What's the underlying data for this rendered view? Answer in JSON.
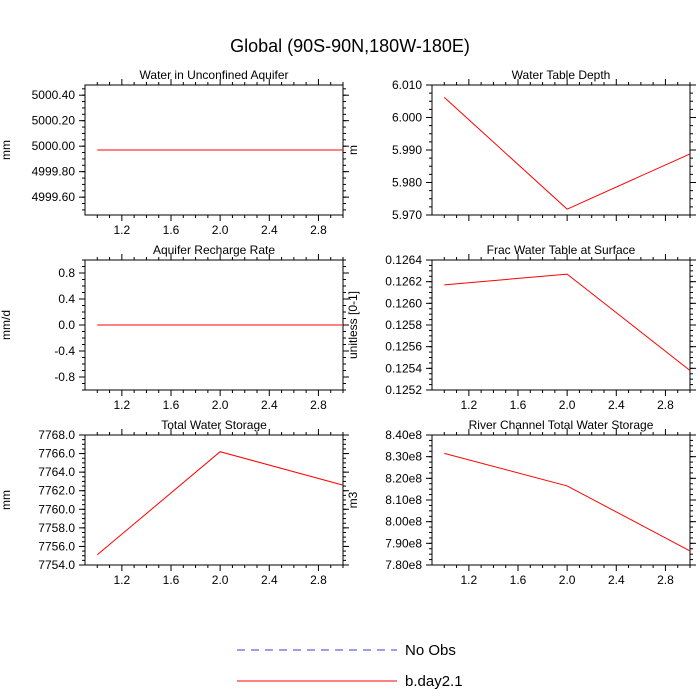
{
  "figure": {
    "title": "Global (90S-90N,180W-180E)"
  },
  "colors": {
    "model": "#ff0000",
    "obs": "#3b3bd6",
    "axis": "#000000"
  },
  "legend": {
    "items": [
      {
        "label": "No Obs",
        "style": "dashed",
        "color": "#3b3bd6"
      },
      {
        "label": "b.day2.1",
        "style": "solid",
        "color": "#ff0000"
      }
    ]
  },
  "chart_data": [
    {
      "type": "line",
      "title": "Water in Unconfined Aquifer",
      "ylabel": "mm",
      "x": [
        1.0,
        2.0,
        3.0
      ],
      "xlim": [
        0.9,
        3.0
      ],
      "ylim": [
        4999.46,
        5000.48
      ],
      "xticks": [
        "1.2",
        "1.6",
        "2.0",
        "2.4",
        "2.8"
      ],
      "yticks": [
        "4999.60",
        "4999.80",
        "5000.00",
        "5000.20",
        "5000.40"
      ],
      "series": [
        {
          "values": [
            4999.97,
            4999.97,
            4999.97
          ]
        }
      ]
    },
    {
      "type": "line",
      "title": "Water Table Depth",
      "ylabel": "m",
      "x": [
        1.0,
        2.0,
        3.0
      ],
      "xlim": [
        0.9,
        3.0
      ],
      "ylim": [
        5.97,
        6.01
      ],
      "xticks": [],
      "yticks": [
        "5.970",
        "5.980",
        "5.990",
        "6.000",
        "6.010"
      ],
      "series": [
        {
          "values": [
            6.0062,
            5.9718,
            5.9888
          ]
        }
      ]
    },
    {
      "type": "line",
      "title": "Aquifer Recharge Rate",
      "ylabel": "mm/d",
      "x": [
        1.0,
        2.0,
        3.0
      ],
      "xlim": [
        0.9,
        3.0
      ],
      "ylim": [
        -1.0,
        1.0
      ],
      "xticks": [
        "1.2",
        "1.6",
        "2.0",
        "2.4",
        "2.8"
      ],
      "yticks": [
        "-0.8",
        "-0.4",
        "0.0",
        "0.4",
        "0.8"
      ],
      "series": [
        {
          "values": [
            0.0,
            0.0,
            0.0
          ]
        }
      ]
    },
    {
      "type": "line",
      "title": "Frac Water Table at Surface",
      "ylabel": "unitless [0-1]",
      "x": [
        1.0,
        2.0,
        3.0
      ],
      "xlim": [
        0.9,
        3.0
      ],
      "ylim": [
        0.1252,
        0.1264
      ],
      "xticks": [
        "1.2",
        "1.6",
        "2.0",
        "2.4",
        "2.8"
      ],
      "yticks": [
        "0.1252",
        "0.1254",
        "0.1256",
        "0.1258",
        "0.1260",
        "0.1262",
        "0.1264"
      ],
      "series": [
        {
          "values": [
            0.12617,
            0.12627,
            0.12538
          ]
        }
      ]
    },
    {
      "type": "line",
      "title": "Total Water Storage",
      "ylabel": "mm",
      "x": [
        1.0,
        2.0,
        3.0
      ],
      "xlim": [
        0.9,
        3.0
      ],
      "ylim": [
        7754.0,
        7768.0
      ],
      "xticks": [
        "1.2",
        "1.6",
        "2.0",
        "2.4",
        "2.8"
      ],
      "yticks": [
        "7754.0",
        "7756.0",
        "7758.0",
        "7760.0",
        "7762.0",
        "7764.0",
        "7766.0",
        "7768.0"
      ],
      "series": [
        {
          "values": [
            7755.1,
            7766.2,
            7762.6
          ]
        }
      ]
    },
    {
      "type": "line",
      "title": "River Channel Total Water Storage",
      "ylabel": "m3",
      "x": [
        1.0,
        2.0,
        3.0
      ],
      "xlim": [
        0.9,
        3.0
      ],
      "ylim": [
        780000000.0,
        840000000.0
      ],
      "xticks": [
        "1.2",
        "1.6",
        "2.0",
        "2.4",
        "2.8"
      ],
      "yticks": [
        "7.80e8",
        "7.90e8",
        "8.00e8",
        "8.10e8",
        "8.20e8",
        "8.30e8",
        "8.40e8"
      ],
      "series": [
        {
          "values": [
            831500000.0,
            816500000.0,
            786500000.0
          ]
        }
      ]
    }
  ]
}
